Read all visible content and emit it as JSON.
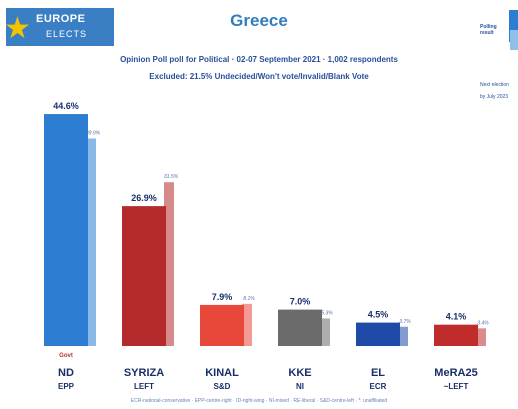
{
  "logo": {
    "line1": "EUROPE",
    "line2": "ELECTS"
  },
  "header": {
    "title": "Greece",
    "subtitle1": "Opinion Poll poll for Political · 02-07 September 2021 · 1,002 respondents",
    "subtitle2": "Excluded: 21.5% Undecided/Won't vote/Invalid/Blank Vote"
  },
  "legend": {
    "polling_label": "Polling result",
    "next_label": "Next election",
    "next_sub": "by July 2023"
  },
  "footnote": "ECR-national-conservative · EPP-centre-right · ID-right-wing · NI-mixed · RE-liberal · S&D-centre-left · *: unaffiliated",
  "colors": {
    "ND": "#2d7ed3",
    "SYRIZA": "#b52a2a",
    "KINAL": "#e8483a",
    "KKE": "#6b6b6b",
    "EL": "#1e4aa8",
    "MeRA25": "#c02c2c"
  },
  "chart_data": {
    "type": "bar",
    "categories": [
      "ND",
      "SYRIZA",
      "KINAL",
      "KKE",
      "EL",
      "MeRA25"
    ],
    "groups": [
      "EPP",
      "LEFT",
      "S&D",
      "NI",
      "ECR",
      "~LEFT"
    ],
    "extra_tags": [
      "Govt",
      "",
      "",
      "",
      "",
      ""
    ],
    "series": [
      {
        "values": [
          44.6,
          26.9,
          7.9,
          7.0,
          4.5,
          4.1
        ],
        "labels": [
          "44.6%",
          "26.9%",
          "7.9%",
          "7.0%",
          "4.5%",
          "4.1%"
        ]
      },
      {
        "values": [
          39.9,
          31.5,
          8.1,
          5.3,
          3.7,
          3.4
        ],
        "labels": [
          "39.9%",
          "31.5%",
          "8.1%",
          "5.3%",
          "3.7%",
          "3.4%"
        ]
      }
    ],
    "title": "Greece",
    "xlabel": "",
    "ylabel": "",
    "ylim": [
      0,
      50
    ],
    "grid": false,
    "legend_position": "top-right"
  }
}
